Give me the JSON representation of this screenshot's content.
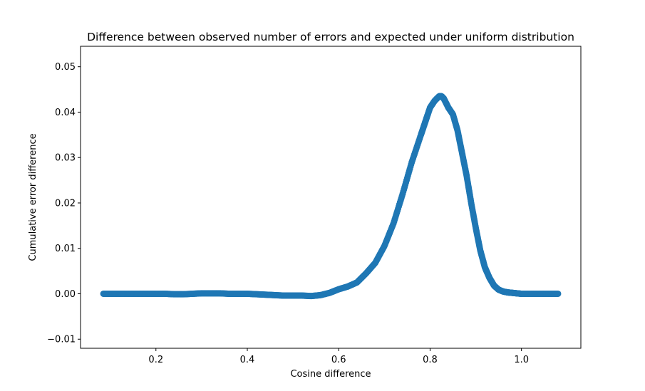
{
  "chart_data": {
    "type": "scatter",
    "title": "Difference between observed number of errors and expected under uniform distribution",
    "xlabel": "Cosine difference",
    "ylabel": "Cumulative error difference",
    "xlim": [
      0.035,
      1.13
    ],
    "ylim": [
      -0.012,
      0.0545
    ],
    "xticks": [
      0.2,
      0.4,
      0.6,
      0.8,
      1.0
    ],
    "xtick_labels": [
      "0.2",
      "0.4",
      "0.6",
      "0.8",
      "1.0"
    ],
    "yticks": [
      -0.01,
      0.0,
      0.01,
      0.02,
      0.03,
      0.04,
      0.05
    ],
    "ytick_labels": [
      "−0.01",
      "0.00",
      "0.01",
      "0.02",
      "0.03",
      "0.04",
      "0.05"
    ],
    "grid": false,
    "legend": "none",
    "color": "#1f77b4",
    "series": [
      {
        "x": [
          0.085,
          0.1,
          0.12,
          0.14,
          0.16,
          0.18,
          0.2,
          0.22,
          0.24,
          0.26,
          0.28,
          0.3,
          0.32,
          0.34,
          0.36,
          0.38,
          0.4,
          0.42,
          0.44,
          0.46,
          0.48,
          0.5,
          0.52,
          0.54,
          0.56,
          0.58,
          0.6,
          0.62,
          0.64,
          0.66,
          0.68,
          0.7,
          0.72,
          0.74,
          0.76,
          0.78,
          0.79,
          0.8,
          0.81,
          0.82,
          0.825,
          0.83,
          0.84,
          0.85,
          0.86,
          0.87,
          0.88,
          0.89,
          0.9,
          0.91,
          0.92,
          0.93,
          0.94,
          0.95,
          0.96,
          0.97,
          0.98,
          0.99,
          1.0,
          1.02,
          1.04,
          1.06,
          1.08
        ],
        "y": [
          0.0,
          0.0,
          0.0,
          0.0,
          0.0,
          0.0,
          0.0,
          0.0,
          -0.0001,
          -0.0001,
          0.0,
          0.0001,
          0.0001,
          0.0001,
          0.0,
          0.0,
          0.0,
          -0.0001,
          -0.0002,
          -0.0003,
          -0.0004,
          -0.0004,
          -0.0004,
          -0.0005,
          -0.0003,
          0.0002,
          0.001,
          0.0016,
          0.0025,
          0.0045,
          0.0068,
          0.0105,
          0.0155,
          0.022,
          0.029,
          0.035,
          0.038,
          0.041,
          0.0425,
          0.0435,
          0.0435,
          0.043,
          0.041,
          0.0395,
          0.036,
          0.031,
          0.026,
          0.02,
          0.0145,
          0.0095,
          0.0058,
          0.0035,
          0.0018,
          0.0009,
          0.0005,
          0.0003,
          0.0002,
          0.0001,
          0.0,
          0.0,
          0.0,
          0.0,
          0.0
        ]
      }
    ]
  }
}
